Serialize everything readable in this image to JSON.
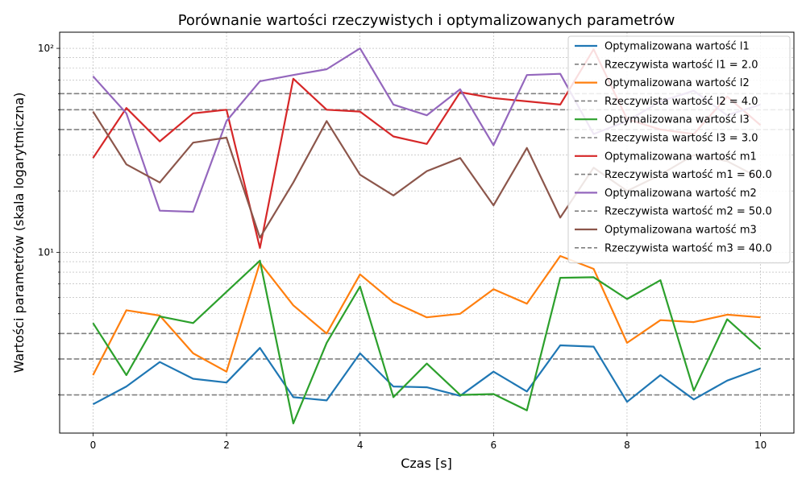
{
  "chart_data": {
    "type": "line",
    "title": "Porównanie wartości rzeczywistych i optymalizowanych parametrów",
    "xlabel": "Czas [s]",
    "ylabel": "Wartości parametrów (skala logarytmiczna)",
    "y_scale": "log",
    "grid": true,
    "legend_position": "top-right",
    "xlim": [
      -0.5,
      10.5
    ],
    "ylim": [
      1.3,
      120
    ],
    "x_ticks": [
      0,
      2,
      4,
      6,
      8,
      10
    ],
    "y_tick_labels": [
      {
        "value": 10,
        "label": "10¹"
      },
      {
        "value": 100,
        "label": "10²"
      }
    ],
    "x": [
      0,
      0.5,
      1,
      1.5,
      2,
      2.5,
      3,
      3.5,
      4,
      4.5,
      5,
      5.5,
      6,
      6.5,
      7,
      7.5,
      8,
      8.5,
      9,
      9.5,
      10
    ],
    "series": [
      {
        "name": "Optymalizowana wartość l1",
        "kind": "optimized",
        "color": "#1f77b4",
        "values": [
          1.8,
          2.2,
          2.9,
          2.4,
          2.3,
          3.4,
          1.95,
          1.88,
          3.2,
          2.2,
          2.18,
          1.98,
          2.6,
          2.08,
          3.5,
          3.45,
          1.85,
          2.5,
          1.9,
          2.35,
          2.7
        ]
      },
      {
        "name": "Optymalizowana wartość l2",
        "kind": "optimized",
        "color": "#ff7f0e",
        "values": [
          2.5,
          5.2,
          4.9,
          3.2,
          2.6,
          8.9,
          5.5,
          4.0,
          7.8,
          5.7,
          4.8,
          5.0,
          6.6,
          5.6,
          9.6,
          8.3,
          3.6,
          4.65,
          4.55,
          4.95,
          4.8
        ]
      },
      {
        "name": "Optymalizowana wartość l3",
        "kind": "optimized",
        "color": "#2ca02c",
        "values": [
          4.5,
          2.5,
          4.85,
          4.5,
          6.4,
          9.1,
          1.45,
          3.6,
          6.8,
          1.95,
          2.85,
          2.0,
          2.02,
          1.68,
          7.5,
          7.55,
          5.9,
          7.3,
          2.1,
          4.7,
          3.35
        ]
      },
      {
        "name": "Optymalizowana wartość m1",
        "kind": "optimized",
        "color": "#d62728",
        "values": [
          29,
          51,
          35,
          48,
          50,
          10.5,
          71,
          50,
          49,
          37,
          34,
          61,
          57,
          55,
          53,
          99,
          45,
          40,
          38,
          58,
          42
        ]
      },
      {
        "name": "Optymalizowana wartość m2",
        "kind": "optimized",
        "color": "#9467bd",
        "values": [
          73,
          48,
          16,
          15.8,
          44,
          69,
          74,
          79,
          100,
          53,
          47,
          63,
          33.5,
          74,
          75,
          38,
          44,
          55,
          62,
          47,
          53
        ]
      },
      {
        "name": "Optymalizowana wartość m3",
        "kind": "optimized",
        "color": "#8c564b",
        "values": [
          49,
          27,
          22,
          34.5,
          36.5,
          11.8,
          22,
          44,
          24,
          19,
          25,
          29,
          17,
          32.5,
          14.8,
          26,
          20,
          24,
          30,
          28,
          23
        ]
      }
    ],
    "reference_lines": [
      {
        "name": "Rzeczywista wartość l1 = 2.0",
        "value": 2.0,
        "color": "#808080"
      },
      {
        "name": "Rzeczywista wartość l2 = 4.0",
        "value": 4.0,
        "color": "#808080"
      },
      {
        "name": "Rzeczywista wartość l3 = 3.0",
        "value": 3.0,
        "color": "#808080"
      },
      {
        "name": "Rzeczywista wartość m1 = 60.0",
        "value": 60.0,
        "color": "#808080"
      },
      {
        "name": "Rzeczywista wartość m2 = 50.0",
        "value": 50.0,
        "color": "#808080"
      },
      {
        "name": "Rzeczywista wartość m3 = 40.0",
        "value": 40.0,
        "color": "#808080"
      }
    ]
  }
}
